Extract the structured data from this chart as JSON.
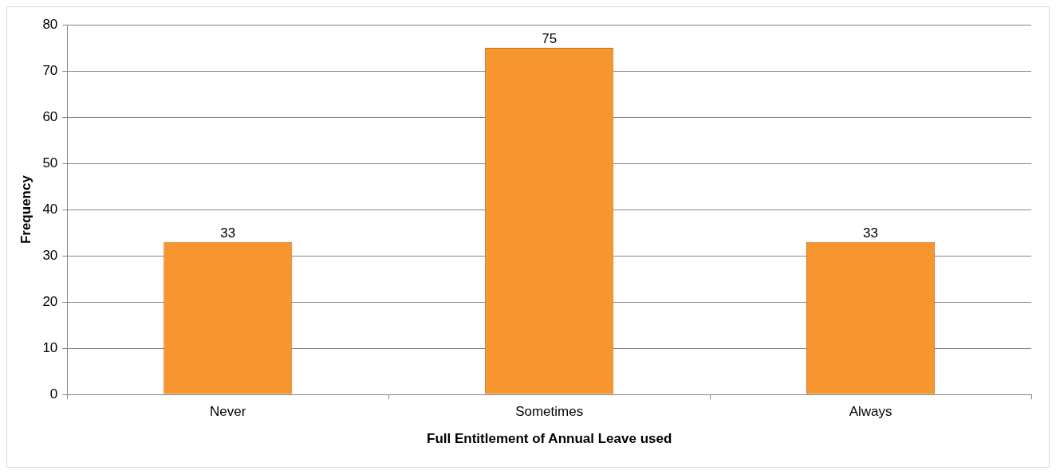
{
  "chart_data": {
    "type": "bar",
    "xlabel": "Full Entitlement of Annual Leave used",
    "ylabel": "Frequency",
    "categories": [
      "Never",
      "Sometimes",
      "Always"
    ],
    "values": [
      33,
      75,
      33
    ],
    "color": "#f7962f",
    "ylim": [
      0,
      80
    ],
    "yticks": [
      0,
      10,
      20,
      30,
      40,
      50,
      60,
      70,
      80
    ],
    "grid": "y",
    "data_labels": true,
    "legend": false
  }
}
